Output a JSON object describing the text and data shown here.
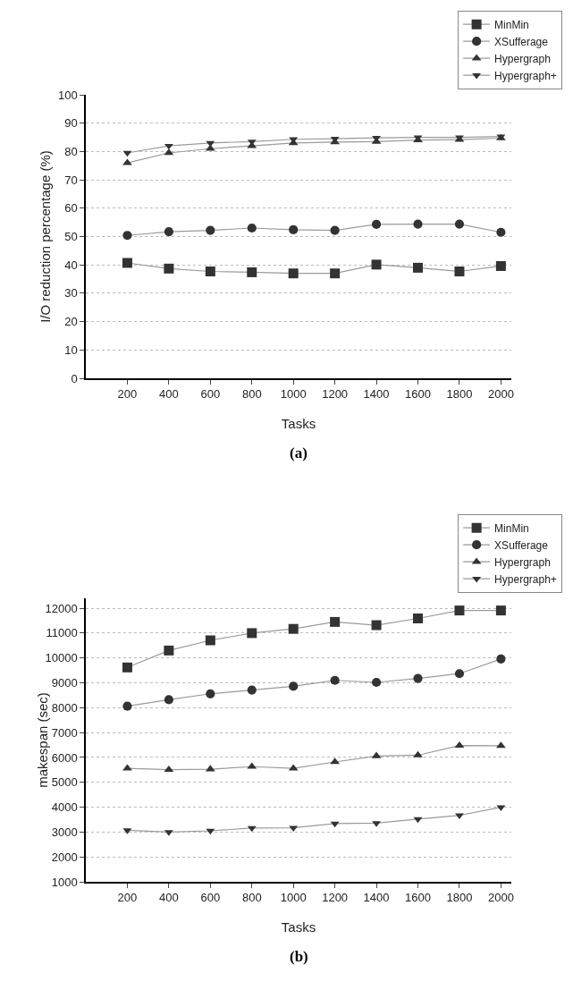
{
  "chart_data": [
    {
      "type": "line",
      "xlabel": "Tasks",
      "ylabel": "I/O reduction percentage (%)",
      "x": [
        200,
        400,
        600,
        800,
        1000,
        1200,
        1400,
        1600,
        1800,
        2000
      ],
      "xlim": [
        0,
        2050
      ],
      "xticks": [
        200,
        400,
        600,
        800,
        1000,
        1200,
        1400,
        1600,
        1800,
        2000
      ],
      "ylim": [
        0,
        100
      ],
      "yticks": [
        0,
        10,
        20,
        30,
        40,
        50,
        60,
        70,
        80,
        90,
        100
      ],
      "grid": "y",
      "legend": "top right",
      "annotations": [
        "(a)"
      ],
      "series": [
        {
          "name": "MinMin",
          "color": "#333333",
          "marker": "square",
          "values": [
            40.7,
            38.7,
            37.7,
            37.4,
            37.0,
            37.0,
            40.1,
            39.0,
            37.7,
            39.6
          ]
        },
        {
          "name": "XSufferage",
          "color": "#333333",
          "marker": "circle",
          "values": [
            50.4,
            51.7,
            52.2,
            53.0,
            52.4,
            52.2,
            54.3,
            54.4,
            54.4,
            51.5
          ]
        },
        {
          "name": "Hypergraph",
          "color": "#333333",
          "marker": "triangle",
          "values": [
            76,
            79.5,
            81,
            82,
            83,
            83.3,
            83.5,
            84,
            84.2,
            84.7
          ]
        },
        {
          "name": "Hypergraph+",
          "color": "#333333",
          "marker": "triangle-down",
          "values": [
            79.5,
            82,
            83,
            83.5,
            84.3,
            84.5,
            84.8,
            85,
            85,
            85.3
          ]
        }
      ]
    },
    {
      "type": "line",
      "xlabel": "Tasks",
      "ylabel": "makespan (sec)",
      "x": [
        200,
        400,
        600,
        800,
        1000,
        1200,
        1400,
        1600,
        1800,
        2000
      ],
      "xlim": [
        0,
        2050
      ],
      "xticks": [
        200,
        400,
        600,
        800,
        1000,
        1200,
        1400,
        1600,
        1800,
        2000
      ],
      "ylim": [
        1000,
        12400
      ],
      "yticks": [
        1000,
        2000,
        3000,
        4000,
        5000,
        6000,
        7000,
        8000,
        9000,
        10000,
        11000,
        12000
      ],
      "grid": "y",
      "legend": "top right",
      "annotations": [
        "(b)"
      ],
      "series": [
        {
          "name": "MinMin",
          "color": "#333333",
          "marker": "square",
          "values": [
            9620,
            10300,
            10710,
            11000,
            11170,
            11450,
            11320,
            11590,
            11910,
            11910
          ]
        },
        {
          "name": "XSufferage",
          "color": "#333333",
          "marker": "circle",
          "values": [
            8060,
            8320,
            8560,
            8710,
            8860,
            9100,
            9020,
            9180,
            9370,
            9960
          ]
        },
        {
          "name": "Hypergraph",
          "color": "#333333",
          "marker": "triangle",
          "values": [
            5560,
            5510,
            5530,
            5630,
            5560,
            5820,
            6060,
            6090,
            6480,
            6470
          ]
        },
        {
          "name": "Hypergraph+",
          "color": "#333333",
          "marker": "triangle-down",
          "values": [
            3070,
            3000,
            3050,
            3160,
            3170,
            3340,
            3360,
            3520,
            3670,
            4000
          ]
        }
      ]
    }
  ]
}
